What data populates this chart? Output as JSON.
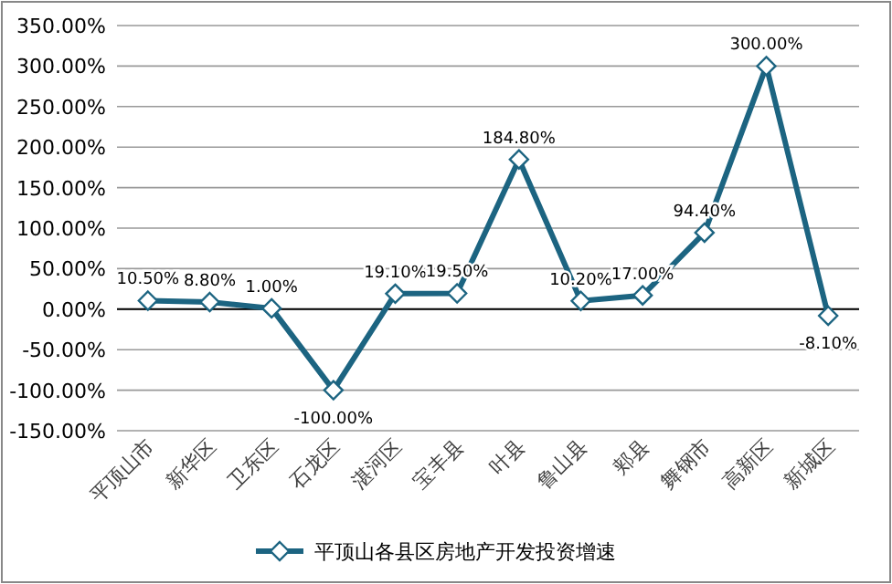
{
  "chart_data": {
    "type": "line",
    "categories": [
      "平顶山市",
      "新华区",
      "卫东区",
      "石龙区",
      "湛河区",
      "宝丰县",
      "叶县",
      "鲁山县",
      "郏县",
      "舞钢市",
      "高新区",
      "新城区"
    ],
    "series": [
      {
        "name": "平顶山各县区房地产开发投资增速",
        "color": "#1c6481",
        "values": [
          10.5,
          8.8,
          1.0,
          -100.0,
          19.1,
          19.5,
          184.8,
          10.2,
          17.0,
          94.4,
          300.0,
          -8.1
        ],
        "value_labels": [
          "10.50%",
          "8.80%",
          "1.00%",
          "-100.00%",
          "19.10%",
          "19.50%",
          "184.80%",
          "10.20%",
          "17.00%",
          "94.40%",
          "300.00%",
          "-8.10%"
        ]
      }
    ],
    "ylim": [
      -150,
      350
    ],
    "yticks": [
      {
        "value": -150,
        "label": "-150.00%"
      },
      {
        "value": -100,
        "label": "-100.00%"
      },
      {
        "value": -50,
        "label": "-50.00%"
      },
      {
        "value": 0,
        "label": "0.00%"
      },
      {
        "value": 50,
        "label": "50.00%"
      },
      {
        "value": 100,
        "label": "100.00%"
      },
      {
        "value": 150,
        "label": "150.00%"
      },
      {
        "value": 200,
        "label": "200.00%"
      },
      {
        "value": 250,
        "label": "250.00%"
      },
      {
        "value": 300,
        "label": "300.00%"
      },
      {
        "value": 350,
        "label": "350.00%"
      }
    ],
    "grid": "y",
    "legend": "bottom",
    "marker": "diamond",
    "line_style": "solid"
  }
}
